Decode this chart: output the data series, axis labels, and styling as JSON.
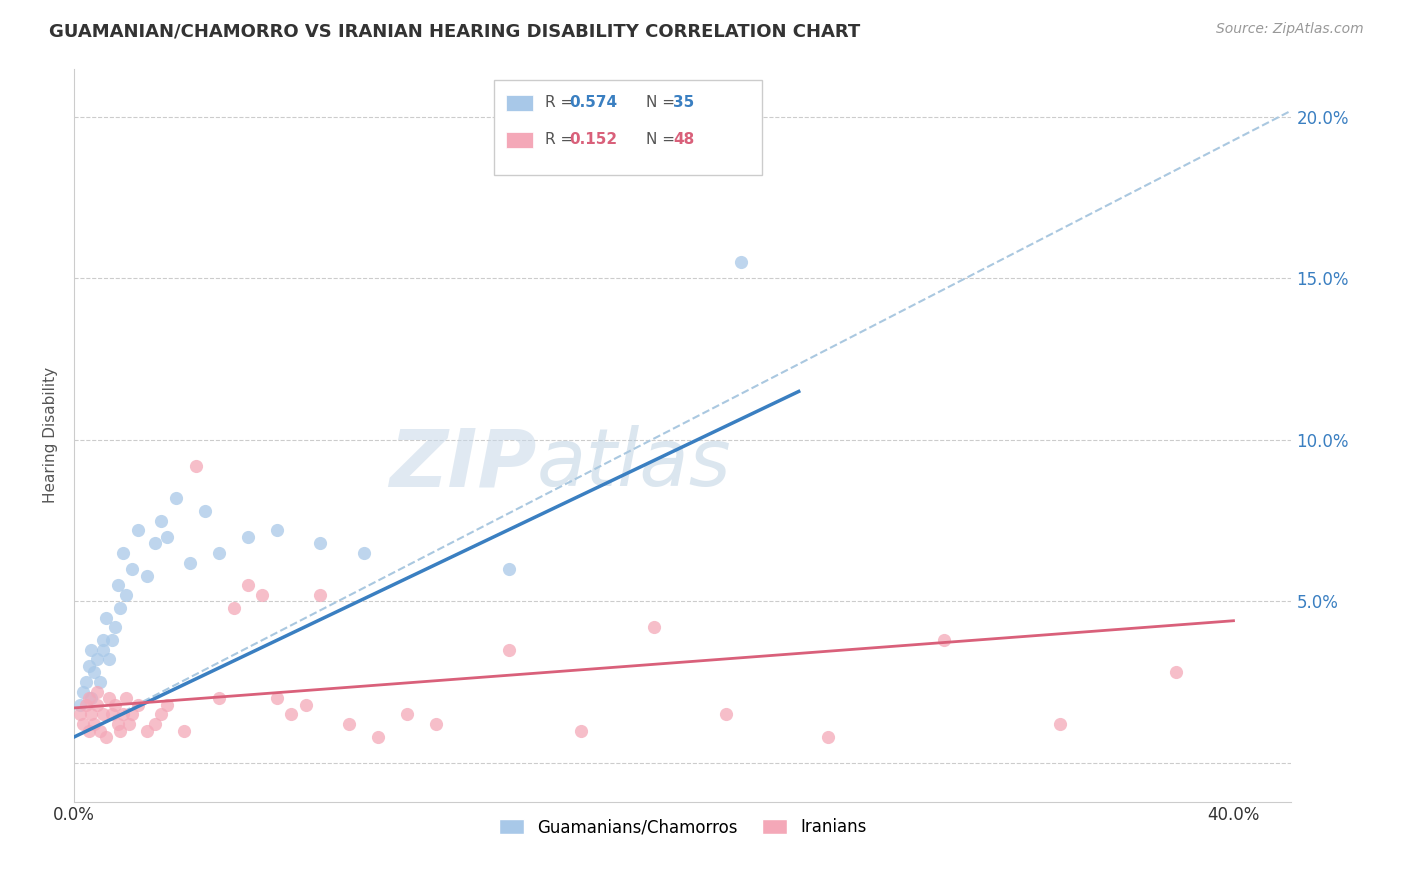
{
  "title": "GUAMANIAN/CHAMORRO VS IRANIAN HEARING DISABILITY CORRELATION CHART",
  "source": "Source: ZipAtlas.com",
  "ylabel": "Hearing Disability",
  "xlim": [
    0.0,
    0.42
  ],
  "ylim": [
    -0.012,
    0.215
  ],
  "yticks": [
    0.0,
    0.05,
    0.1,
    0.15,
    0.2
  ],
  "xticks": [
    0.0,
    0.1,
    0.2,
    0.3,
    0.4
  ],
  "blue_R": "0.574",
  "blue_N": "35",
  "pink_R": "0.152",
  "pink_N": "48",
  "blue_color": "#a8c8e8",
  "pink_color": "#f4a8b8",
  "blue_line_color": "#3a7fc1",
  "pink_line_color": "#d9607a",
  "dashed_line_color": "#aac8e0",
  "watermark_zip": "ZIP",
  "watermark_atlas": "atlas",
  "legend_labels": [
    "Guamanians/Chamorros",
    "Iranians"
  ],
  "blue_scatter_x": [
    0.002,
    0.003,
    0.004,
    0.005,
    0.006,
    0.006,
    0.007,
    0.008,
    0.009,
    0.01,
    0.01,
    0.011,
    0.012,
    0.013,
    0.014,
    0.015,
    0.016,
    0.017,
    0.018,
    0.02,
    0.022,
    0.025,
    0.028,
    0.03,
    0.032,
    0.035,
    0.04,
    0.045,
    0.05,
    0.06,
    0.07,
    0.085,
    0.1,
    0.15,
    0.23
  ],
  "blue_scatter_y": [
    0.018,
    0.022,
    0.025,
    0.03,
    0.02,
    0.035,
    0.028,
    0.032,
    0.025,
    0.035,
    0.038,
    0.045,
    0.032,
    0.038,
    0.042,
    0.055,
    0.048,
    0.065,
    0.052,
    0.06,
    0.072,
    0.058,
    0.068,
    0.075,
    0.07,
    0.082,
    0.062,
    0.078,
    0.065,
    0.07,
    0.072,
    0.068,
    0.065,
    0.06,
    0.155
  ],
  "pink_scatter_x": [
    0.002,
    0.003,
    0.004,
    0.005,
    0.005,
    0.006,
    0.007,
    0.008,
    0.008,
    0.009,
    0.01,
    0.011,
    0.012,
    0.013,
    0.014,
    0.015,
    0.016,
    0.017,
    0.018,
    0.019,
    0.02,
    0.022,
    0.025,
    0.028,
    0.03,
    0.032,
    0.038,
    0.042,
    0.05,
    0.055,
    0.06,
    0.065,
    0.07,
    0.075,
    0.08,
    0.085,
    0.095,
    0.105,
    0.115,
    0.125,
    0.15,
    0.175,
    0.2,
    0.225,
    0.26,
    0.3,
    0.34,
    0.38
  ],
  "pink_scatter_y": [
    0.015,
    0.012,
    0.018,
    0.01,
    0.02,
    0.015,
    0.012,
    0.018,
    0.022,
    0.01,
    0.015,
    0.008,
    0.02,
    0.015,
    0.018,
    0.012,
    0.01,
    0.015,
    0.02,
    0.012,
    0.015,
    0.018,
    0.01,
    0.012,
    0.015,
    0.018,
    0.01,
    0.092,
    0.02,
    0.048,
    0.055,
    0.052,
    0.02,
    0.015,
    0.018,
    0.052,
    0.012,
    0.008,
    0.015,
    0.012,
    0.035,
    0.01,
    0.042,
    0.015,
    0.008,
    0.038,
    0.012,
    0.028
  ],
  "blue_trend_x": [
    0.0,
    0.25
  ],
  "blue_trend_y": [
    0.008,
    0.115
  ],
  "pink_trend_x": [
    0.0,
    0.4
  ],
  "pink_trend_y": [
    0.017,
    0.044
  ],
  "dashed_trend_x": [
    0.0,
    0.42
  ],
  "dashed_trend_y": [
    0.008,
    0.202
  ]
}
